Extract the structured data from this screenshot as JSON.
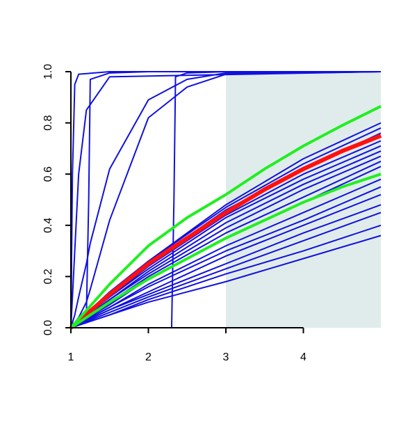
{
  "chart_data": {
    "type": "line",
    "xlim": [
      1,
      5
    ],
    "ylim": [
      0,
      1
    ],
    "xticks": [
      1,
      2,
      3,
      4
    ],
    "yticks": [
      {
        "value": 0,
        "label": "0.0"
      },
      0.2,
      0.4,
      0.6,
      0.8,
      {
        "value": 1,
        "label": "1.0"
      }
    ],
    "shaded_region": {
      "x": [
        3,
        5
      ],
      "color": "#e0ecec"
    },
    "series": [
      {
        "color": "#1010e0",
        "line_width": 2,
        "x": [
          1,
          1.02,
          1.05,
          1.1,
          1.5,
          5
        ],
        "values": [
          0,
          0.6,
          0.95,
          0.99,
          1,
          1
        ]
      },
      {
        "color": "#1010e0",
        "line_width": 2,
        "x": [
          1,
          1.05,
          1.1,
          1.2,
          1.5,
          5
        ],
        "values": [
          0,
          0.3,
          0.6,
          0.85,
          0.98,
          1
        ]
      },
      {
        "color": "#1010e0",
        "line_width": 2,
        "x": [
          1,
          1.2,
          1.23,
          1.25,
          1.5,
          2,
          5
        ],
        "values": [
          0,
          0.05,
          0.5,
          0.97,
          0.995,
          1,
          1
        ]
      },
      {
        "color": "#1010e0",
        "line_width": 2,
        "x": [
          1,
          2.3,
          2.33,
          2.35,
          2.5,
          3,
          5
        ],
        "values": [
          0,
          0,
          0.5,
          0.98,
          0.995,
          1,
          1
        ]
      },
      {
        "color": "#1010e0",
        "line_width": 2,
        "x": [
          1,
          1.05,
          1.1,
          1.2,
          1.25,
          1.5,
          2,
          2.5,
          3,
          5
        ],
        "values": [
          0,
          0.05,
          0.12,
          0.25,
          0.33,
          0.62,
          0.89,
          0.97,
          0.995,
          1
        ]
      },
      {
        "color": "#1010e0",
        "line_width": 2,
        "x": [
          1,
          1.1,
          1.2,
          1.25,
          1.5,
          2,
          2.5,
          3,
          5
        ],
        "values": [
          0,
          0.04,
          0.1,
          0.15,
          0.42,
          0.82,
          0.94,
          0.99,
          1
        ]
      },
      {
        "color": "#1010e0",
        "line_width": 2,
        "x": [
          1,
          1.5,
          2,
          3,
          4,
          5
        ],
        "values": [
          0,
          0.14,
          0.26,
          0.48,
          0.66,
          0.8
        ]
      },
      {
        "color": "#1010e0",
        "line_width": 2,
        "x": [
          1,
          1.5,
          2,
          3,
          4,
          5
        ],
        "values": [
          0,
          0.13,
          0.26,
          0.47,
          0.64,
          0.78
        ]
      },
      {
        "color": "#1010e0",
        "line_width": 2,
        "x": [
          1,
          1.5,
          2,
          3,
          4,
          5
        ],
        "values": [
          0,
          0.13,
          0.25,
          0.46,
          0.62,
          0.76
        ]
      },
      {
        "color": "#1010e0",
        "line_width": 2,
        "x": [
          1,
          1.5,
          2,
          3,
          4,
          5
        ],
        "values": [
          0,
          0.12,
          0.24,
          0.44,
          0.6,
          0.73
        ]
      },
      {
        "color": "#1010e0",
        "line_width": 2,
        "x": [
          1,
          1.5,
          2,
          3,
          4,
          5
        ],
        "values": [
          0,
          0.12,
          0.23,
          0.43,
          0.58,
          0.71
        ]
      },
      {
        "color": "#1010e0",
        "line_width": 2,
        "x": [
          1,
          1.5,
          2,
          3,
          4,
          5
        ],
        "values": [
          0,
          0.11,
          0.22,
          0.41,
          0.56,
          0.69
        ]
      },
      {
        "color": "#1010e0",
        "line_width": 2,
        "x": [
          1,
          1.5,
          2,
          3,
          4,
          5
        ],
        "values": [
          0,
          0.11,
          0.21,
          0.39,
          0.54,
          0.67
        ]
      },
      {
        "color": "#1010e0",
        "line_width": 2,
        "x": [
          1,
          1.5,
          2,
          3,
          4,
          5
        ],
        "values": [
          0,
          0.1,
          0.2,
          0.37,
          0.51,
          0.65
        ]
      },
      {
        "color": "#1010e0",
        "line_width": 2,
        "x": [
          1,
          1.5,
          2,
          3,
          4,
          5
        ],
        "values": [
          0,
          0.09,
          0.19,
          0.35,
          0.49,
          0.63
        ]
      },
      {
        "color": "#1010e0",
        "line_width": 2,
        "x": [
          1,
          1.5,
          2,
          3,
          4,
          5
        ],
        "values": [
          0,
          0.08,
          0.17,
          0.32,
          0.45,
          0.58
        ]
      },
      {
        "color": "#1010e0",
        "line_width": 2,
        "x": [
          1,
          1.5,
          2,
          3,
          4,
          5
        ],
        "values": [
          0,
          0.08,
          0.16,
          0.3,
          0.42,
          0.55
        ]
      },
      {
        "color": "#1010e0",
        "line_width": 2,
        "x": [
          1,
          1.5,
          2,
          3,
          4,
          5
        ],
        "values": [
          0,
          0.07,
          0.14,
          0.28,
          0.4,
          0.52
        ]
      },
      {
        "color": "#1010e0",
        "line_width": 2,
        "x": [
          1,
          1.5,
          2,
          3,
          4,
          5
        ],
        "values": [
          0,
          0.07,
          0.13,
          0.25,
          0.37,
          0.48
        ]
      },
      {
        "color": "#1010e0",
        "line_width": 2,
        "x": [
          1,
          1.5,
          2,
          3,
          4,
          5
        ],
        "values": [
          0,
          0.06,
          0.12,
          0.23,
          0.34,
          0.45
        ]
      },
      {
        "color": "#1010e0",
        "line_width": 2,
        "x": [
          1,
          1.5,
          2,
          3,
          4,
          5
        ],
        "values": [
          0,
          0.05,
          0.11,
          0.21,
          0.3,
          0.4
        ]
      },
      {
        "color": "#1010e0",
        "line_width": 2,
        "x": [
          1,
          1.5,
          2,
          3,
          4,
          5
        ],
        "values": [
          0,
          0.05,
          0.1,
          0.18,
          0.27,
          0.36
        ]
      },
      {
        "color": "#ff1010",
        "line_width": 6,
        "x": [
          1,
          1.5,
          2,
          2.5,
          3,
          3.5,
          4,
          4.5,
          5
        ],
        "values": [
          0,
          0.13,
          0.25,
          0.35,
          0.45,
          0.54,
          0.62,
          0.69,
          0.75
        ]
      },
      {
        "color": "#22ee22",
        "line_width": 4,
        "x": [
          1,
          1.5,
          2,
          2.5,
          3,
          3.5,
          4,
          4.5,
          5
        ],
        "values": [
          0,
          0.17,
          0.32,
          0.43,
          0.52,
          0.62,
          0.71,
          0.79,
          0.865
        ]
      },
      {
        "color": "#22ee22",
        "line_width": 4,
        "x": [
          1,
          1.5,
          2,
          2.5,
          3,
          3.5,
          4,
          4.5,
          5
        ],
        "values": [
          0,
          0.1,
          0.19,
          0.27,
          0.35,
          0.42,
          0.49,
          0.55,
          0.6
        ]
      }
    ]
  }
}
